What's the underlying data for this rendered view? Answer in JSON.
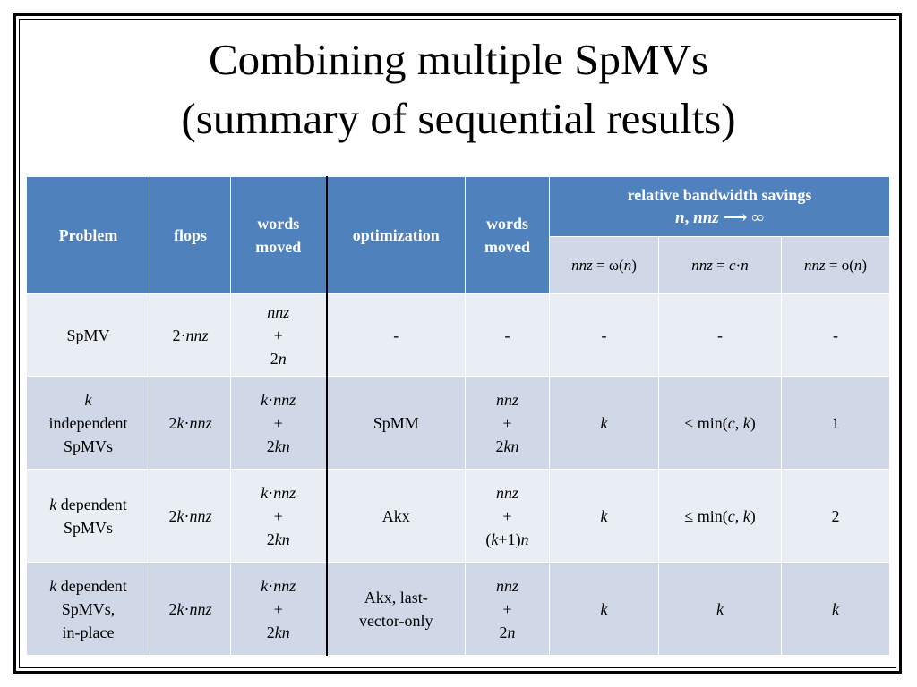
{
  "slide": {
    "title_line1": "Combining multiple SpMVs",
    "title_line2": "(summary of sequential results)"
  },
  "table": {
    "headers": {
      "problem": "Problem",
      "flops": "flops",
      "words_moved_1_a": "words",
      "words_moved_1_b": "moved",
      "optimization": "optimization",
      "words_moved_2_a": "words",
      "words_moved_2_b": "moved",
      "savings_line1": "relative bandwidth savings",
      "savings_line2": "(n, nnz ⟶ ∞)",
      "sub_1": "nnz = ω(n)",
      "sub_2": "nnz = c·n",
      "sub_3": "nnz = o(n)"
    },
    "rows": [
      {
        "problem": [
          "SpMV"
        ],
        "flops": "2·nnz",
        "words_moved": [
          "nnz",
          "+",
          "2n"
        ],
        "optimization": [
          "-"
        ],
        "words_moved_opt": [
          "-"
        ],
        "s1": "-",
        "s2": "-",
        "s3": "-"
      },
      {
        "problem": [
          "k",
          "independent",
          "SpMVs"
        ],
        "flops": "2k·nnz",
        "words_moved": [
          "k·nnz",
          "+",
          "2kn"
        ],
        "optimization": [
          "SpMM"
        ],
        "words_moved_opt": [
          "nnz",
          "+",
          "2kn"
        ],
        "s1": "k",
        "s2": "≤ min(c, k)",
        "s3": "1"
      },
      {
        "problem": [
          "k dependent",
          "SpMVs"
        ],
        "flops": "2k·nnz",
        "words_moved": [
          "k·nnz",
          "+",
          "2kn"
        ],
        "optimization": [
          "Akx"
        ],
        "words_moved_opt": [
          "nnz",
          "+",
          "(k+1)n"
        ],
        "s1": "k",
        "s2": "≤ min(c, k)",
        "s3": "2"
      },
      {
        "problem": [
          "k dependent",
          "SpMVs,",
          "in-place"
        ],
        "flops": "2k·nnz",
        "words_moved": [
          "k·nnz",
          "+",
          "2kn"
        ],
        "optimization": [
          "Akx, last-",
          "vector-only"
        ],
        "words_moved_opt": [
          "nnz",
          "+",
          "2n"
        ],
        "s1": "k",
        "s2": "k",
        "s3": "k"
      }
    ]
  }
}
